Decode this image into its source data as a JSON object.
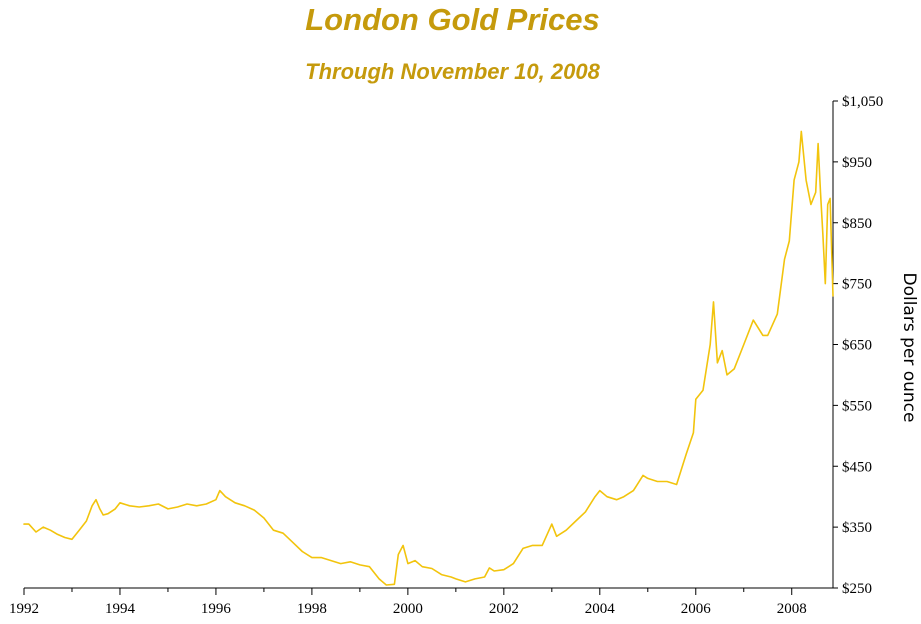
{
  "header": {
    "title": "London Gold Prices",
    "subtitle": "Through November 10, 2008"
  },
  "colors": {
    "title": "#c59a0c",
    "line": "#f2c40d",
    "axis": "#000000",
    "background": "#ffffff"
  },
  "chart_data": {
    "type": "line",
    "title": "London Gold Prices",
    "subtitle": "Through November 10, 2008",
    "xlabel": "",
    "ylabel": "Dollars per ounce",
    "y_axis_position": "right",
    "grid": false,
    "legend": "none",
    "xlim": [
      1992.0,
      2008.86
    ],
    "ylim": [
      250,
      1050
    ],
    "x_ticks": [
      1992,
      1994,
      1996,
      1998,
      2000,
      2002,
      2004,
      2006,
      2008
    ],
    "x_tick_labels": [
      "1992",
      "1994",
      "1996",
      "1998",
      "2000",
      "2002",
      "2004",
      "2006",
      "2008"
    ],
    "x_minor_ticks": [
      1993,
      1995,
      1997,
      1999,
      2001,
      2003,
      2005,
      2007
    ],
    "y_ticks": [
      250,
      350,
      450,
      550,
      650,
      750,
      850,
      950,
      1050
    ],
    "y_tick_labels": [
      "$250",
      "$350",
      "$450",
      "$550",
      "$650",
      "$750",
      "$850",
      "$950",
      "$1,050"
    ],
    "series": [
      {
        "color": "#f2c40d",
        "x": [
          1992.0,
          1992.1,
          1992.25,
          1992.4,
          1992.55,
          1992.7,
          1992.85,
          1993.0,
          1993.15,
          1993.3,
          1993.42,
          1993.5,
          1993.58,
          1993.65,
          1993.75,
          1993.9,
          1994.0,
          1994.2,
          1994.4,
          1994.6,
          1994.8,
          1995.0,
          1995.2,
          1995.4,
          1995.6,
          1995.8,
          1996.0,
          1996.08,
          1996.2,
          1996.4,
          1996.6,
          1996.8,
          1997.0,
          1997.2,
          1997.4,
          1997.6,
          1997.8,
          1998.0,
          1998.2,
          1998.4,
          1998.6,
          1998.8,
          1999.0,
          1999.2,
          1999.4,
          1999.55,
          1999.72,
          1999.8,
          1999.9,
          2000.0,
          2000.15,
          2000.3,
          2000.5,
          2000.7,
          2000.9,
          2001.0,
          2001.2,
          2001.4,
          2001.6,
          2001.7,
          2001.8,
          2002.0,
          2002.2,
          2002.4,
          2002.6,
          2002.8,
          2003.0,
          2003.1,
          2003.3,
          2003.5,
          2003.7,
          2003.9,
          2004.0,
          2004.15,
          2004.35,
          2004.5,
          2004.7,
          2004.9,
          2005.0,
          2005.2,
          2005.4,
          2005.6,
          2005.8,
          2005.95,
          2006.0,
          2006.15,
          2006.3,
          2006.37,
          2006.45,
          2006.55,
          2006.65,
          2006.8,
          2007.0,
          2007.2,
          2007.4,
          2007.5,
          2007.7,
          2007.85,
          2007.95,
          2008.05,
          2008.15,
          2008.2,
          2008.3,
          2008.4,
          2008.5,
          2008.55,
          2008.6,
          2008.65,
          2008.7,
          2008.75,
          2008.8,
          2008.86
        ],
        "values": [
          355,
          355,
          342,
          350,
          345,
          338,
          333,
          330,
          345,
          360,
          385,
          395,
          380,
          370,
          372,
          380,
          390,
          385,
          383,
          385,
          388,
          380,
          383,
          388,
          385,
          388,
          395,
          410,
          400,
          390,
          385,
          378,
          365,
          345,
          340,
          325,
          310,
          300,
          300,
          295,
          290,
          293,
          288,
          285,
          265,
          255,
          256,
          305,
          320,
          290,
          295,
          285,
          282,
          272,
          268,
          265,
          260,
          265,
          268,
          283,
          278,
          280,
          290,
          315,
          320,
          320,
          355,
          335,
          345,
          360,
          375,
          400,
          410,
          400,
          395,
          400,
          410,
          435,
          430,
          425,
          425,
          420,
          470,
          505,
          560,
          575,
          650,
          720,
          620,
          640,
          600,
          610,
          650,
          690,
          665,
          665,
          700,
          790,
          820,
          920,
          950,
          1000,
          920,
          880,
          900,
          980,
          900,
          830,
          750,
          880,
          890,
          730
        ]
      }
    ]
  }
}
